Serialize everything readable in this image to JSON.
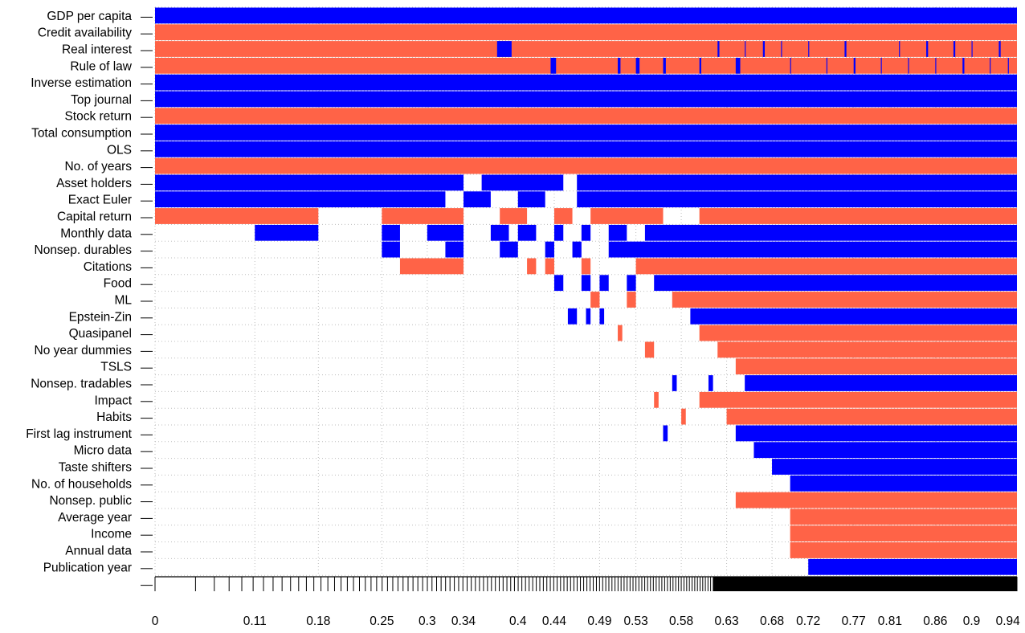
{
  "chart_data": {
    "type": "heatmap",
    "title": "",
    "xlabel": "",
    "ylabel": "",
    "xlim": [
      0,
      0.95
    ],
    "x_tick_labels": [
      "0",
      "0.11",
      "0.18",
      "0.25",
      "0.3",
      "0.34",
      "0.4",
      "0.44",
      "0.49",
      "0.53",
      "0.58",
      "0.63",
      "0.68",
      "0.72",
      "0.77",
      "0.81",
      "0.86",
      "0.9",
      "0.94"
    ],
    "colors": {
      "positive": "#0000ff",
      "negative": "#ff6347"
    },
    "rows": [
      {
        "label": "GDP per capita",
        "segments": [
          [
            0,
            0.95,
            "positive"
          ]
        ]
      },
      {
        "label": "Credit availability",
        "segments": [
          [
            0,
            0.95,
            "negative"
          ]
        ]
      },
      {
        "label": "Real interest",
        "segments": [
          [
            0,
            0.95,
            "negative"
          ],
          [
            0.377,
            0.393,
            "positive"
          ],
          [
            0.62,
            0.622,
            "positive"
          ],
          [
            0.65,
            0.651,
            "positive"
          ],
          [
            0.67,
            0.672,
            "positive"
          ],
          [
            0.69,
            0.691,
            "positive"
          ],
          [
            0.72,
            0.721,
            "positive"
          ],
          [
            0.76,
            0.762,
            "positive"
          ],
          [
            0.82,
            0.821,
            "positive"
          ],
          [
            0.85,
            0.852,
            "positive"
          ],
          [
            0.88,
            0.882,
            "positive"
          ],
          [
            0.9,
            0.901,
            "positive"
          ],
          [
            0.93,
            0.932,
            "positive"
          ]
        ]
      },
      {
        "label": "Rule of law",
        "segments": [
          [
            0,
            0.95,
            "negative"
          ],
          [
            0.436,
            0.442,
            "positive"
          ],
          [
            0.51,
            0.513,
            "positive"
          ],
          [
            0.53,
            0.534,
            "positive"
          ],
          [
            0.56,
            0.563,
            "positive"
          ],
          [
            0.6,
            0.602,
            "positive"
          ],
          [
            0.64,
            0.645,
            "positive"
          ],
          [
            0.7,
            0.701,
            "positive"
          ],
          [
            0.74,
            0.741,
            "positive"
          ],
          [
            0.77,
            0.772,
            "positive"
          ],
          [
            0.8,
            0.801,
            "positive"
          ],
          [
            0.83,
            0.831,
            "positive"
          ],
          [
            0.86,
            0.861,
            "positive"
          ],
          [
            0.89,
            0.892,
            "positive"
          ],
          [
            0.92,
            0.921,
            "positive"
          ],
          [
            0.94,
            0.941,
            "positive"
          ]
        ]
      },
      {
        "label": "Inverse estimation",
        "segments": [
          [
            0,
            0.95,
            "positive"
          ]
        ]
      },
      {
        "label": "Top journal",
        "segments": [
          [
            0,
            0.95,
            "positive"
          ]
        ]
      },
      {
        "label": "Stock return",
        "segments": [
          [
            0,
            0.95,
            "negative"
          ]
        ]
      },
      {
        "label": "Total consumption",
        "segments": [
          [
            0,
            0.95,
            "positive"
          ]
        ]
      },
      {
        "label": "OLS",
        "segments": [
          [
            0,
            0.95,
            "positive"
          ]
        ]
      },
      {
        "label": "No. of years",
        "segments": [
          [
            0,
            0.95,
            "negative"
          ]
        ]
      },
      {
        "label": "Asset holders",
        "segments": [
          [
            0,
            0.34,
            "positive"
          ],
          [
            0.36,
            0.45,
            "positive"
          ],
          [
            0.465,
            0.95,
            "positive"
          ]
        ]
      },
      {
        "label": "Exact Euler",
        "segments": [
          [
            0,
            0.32,
            "positive"
          ],
          [
            0.34,
            0.37,
            "positive"
          ],
          [
            0.4,
            0.43,
            "positive"
          ],
          [
            0.465,
            0.95,
            "positive"
          ]
        ]
      },
      {
        "label": "Capital return",
        "segments": [
          [
            0,
            0.18,
            "negative"
          ],
          [
            0.25,
            0.34,
            "negative"
          ],
          [
            0.38,
            0.41,
            "negative"
          ],
          [
            0.44,
            0.46,
            "negative"
          ],
          [
            0.48,
            0.56,
            "negative"
          ],
          [
            0.6,
            0.95,
            "negative"
          ]
        ]
      },
      {
        "label": "Monthly data",
        "segments": [
          [
            0.11,
            0.18,
            "positive"
          ],
          [
            0.25,
            0.27,
            "positive"
          ],
          [
            0.3,
            0.34,
            "positive"
          ],
          [
            0.37,
            0.39,
            "positive"
          ],
          [
            0.4,
            0.42,
            "positive"
          ],
          [
            0.44,
            0.45,
            "positive"
          ],
          [
            0.47,
            0.48,
            "positive"
          ],
          [
            0.5,
            0.52,
            "positive"
          ],
          [
            0.54,
            0.95,
            "positive"
          ]
        ]
      },
      {
        "label": "Nonsep. durables",
        "segments": [
          [
            0.25,
            0.27,
            "positive"
          ],
          [
            0.32,
            0.34,
            "positive"
          ],
          [
            0.38,
            0.4,
            "positive"
          ],
          [
            0.43,
            0.44,
            "positive"
          ],
          [
            0.46,
            0.47,
            "positive"
          ],
          [
            0.5,
            0.95,
            "positive"
          ]
        ]
      },
      {
        "label": "Citations",
        "segments": [
          [
            0.27,
            0.34,
            "negative"
          ],
          [
            0.41,
            0.42,
            "negative"
          ],
          [
            0.43,
            0.44,
            "negative"
          ],
          [
            0.47,
            0.48,
            "negative"
          ],
          [
            0.53,
            0.95,
            "negative"
          ]
        ]
      },
      {
        "label": "Food",
        "segments": [
          [
            0.44,
            0.45,
            "positive"
          ],
          [
            0.47,
            0.48,
            "positive"
          ],
          [
            0.49,
            0.5,
            "positive"
          ],
          [
            0.52,
            0.53,
            "positive"
          ],
          [
            0.55,
            0.95,
            "positive"
          ]
        ]
      },
      {
        "label": "ML",
        "segments": [
          [
            0.48,
            0.49,
            "negative"
          ],
          [
            0.52,
            0.53,
            "negative"
          ],
          [
            0.57,
            0.95,
            "negative"
          ]
        ]
      },
      {
        "label": "Epstein-Zin",
        "segments": [
          [
            0.455,
            0.465,
            "positive"
          ],
          [
            0.475,
            0.48,
            "positive"
          ],
          [
            0.49,
            0.495,
            "positive"
          ],
          [
            0.59,
            0.95,
            "positive"
          ]
        ]
      },
      {
        "label": "Quasipanel",
        "segments": [
          [
            0.51,
            0.515,
            "negative"
          ],
          [
            0.6,
            0.95,
            "negative"
          ]
        ]
      },
      {
        "label": "No year dummies",
        "segments": [
          [
            0.54,
            0.55,
            "negative"
          ],
          [
            0.62,
            0.95,
            "negative"
          ]
        ]
      },
      {
        "label": "TSLS",
        "segments": [
          [
            0.64,
            0.95,
            "negative"
          ]
        ]
      },
      {
        "label": "Nonsep. tradables",
        "segments": [
          [
            0.57,
            0.575,
            "positive"
          ],
          [
            0.61,
            0.615,
            "positive"
          ],
          [
            0.65,
            0.95,
            "positive"
          ]
        ]
      },
      {
        "label": "Impact",
        "segments": [
          [
            0.55,
            0.555,
            "negative"
          ],
          [
            0.6,
            0.95,
            "negative"
          ]
        ]
      },
      {
        "label": "Habits",
        "segments": [
          [
            0.58,
            0.585,
            "negative"
          ],
          [
            0.63,
            0.95,
            "negative"
          ]
        ]
      },
      {
        "label": "First lag instrument",
        "segments": [
          [
            0.56,
            0.565,
            "positive"
          ],
          [
            0.64,
            0.95,
            "positive"
          ]
        ]
      },
      {
        "label": "Micro data",
        "segments": [
          [
            0.66,
            0.95,
            "positive"
          ]
        ]
      },
      {
        "label": "Taste shifters",
        "segments": [
          [
            0.68,
            0.95,
            "positive"
          ]
        ]
      },
      {
        "label": "No. of households",
        "segments": [
          [
            0.7,
            0.95,
            "positive"
          ]
        ]
      },
      {
        "label": "Nonsep. public",
        "segments": [
          [
            0.64,
            0.95,
            "negative"
          ]
        ]
      },
      {
        "label": "Average year",
        "segments": [
          [
            0.7,
            0.95,
            "negative"
          ]
        ]
      },
      {
        "label": "Income",
        "segments": [
          [
            0.7,
            0.95,
            "negative"
          ]
        ]
      },
      {
        "label": "Annual data",
        "segments": [
          [
            0.7,
            0.95,
            "negative"
          ]
        ]
      },
      {
        "label": "Publication year",
        "segments": [
          [
            0.72,
            0.95,
            "positive"
          ]
        ]
      }
    ]
  }
}
